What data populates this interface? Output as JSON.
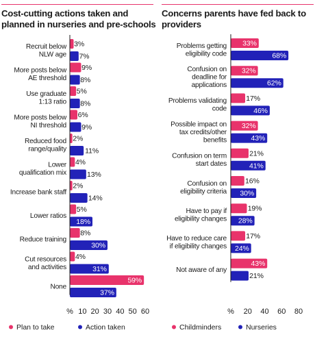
{
  "chart_data": [
    {
      "type": "bar",
      "orientation": "horizontal",
      "title": "Cost-cutting actions taken and planned in nurseries and pre-schools",
      "title_lines": [
        "Cost-cutting actions taken and",
        "planned in nurseries and pre-schools"
      ],
      "categories": [
        [
          "Recruit below",
          "NLW age"
        ],
        [
          "More posts below",
          "AE threshold"
        ],
        [
          "Use graduate",
          "1:13 ratio"
        ],
        [
          "More posts below",
          "NI threshold"
        ],
        [
          "Reduced food",
          "range/quality"
        ],
        [
          "Lower",
          "qualification mix"
        ],
        [
          "Increase bank staff"
        ],
        [
          "Lower ratios"
        ],
        [
          "Reduce training"
        ],
        [
          "Cut resources",
          "and activities"
        ],
        [
          "None"
        ]
      ],
      "series": [
        {
          "name": "Plan to take",
          "color": "#e8336b",
          "values": [
            3,
            9,
            5,
            6,
            2,
            4,
            2,
            5,
            8,
            4,
            59
          ]
        },
        {
          "name": "Action taken",
          "color": "#2222b8",
          "values": [
            7,
            8,
            8,
            9,
            11,
            13,
            14,
            18,
            30,
            31,
            37
          ]
        }
      ],
      "xlim": [
        0,
        60
      ],
      "xticks": [
        "%",
        "10",
        "20",
        "30",
        "40",
        "50",
        "60"
      ],
      "value_suffix": "%",
      "legend_placement": "bottom"
    },
    {
      "type": "bar",
      "orientation": "horizontal",
      "title": "Concerns parents have fed back to providers",
      "title_lines": [
        "Concerns parents have fed back to",
        "providers"
      ],
      "categories": [
        [
          "Problems getting",
          "eligibility code"
        ],
        [
          "Confusion on",
          "deadline for",
          "applications"
        ],
        [
          "Problems validating",
          "code"
        ],
        [
          "Possible impact on",
          "tax credits/other",
          "benefits"
        ],
        [
          "Confusion on term",
          "start dates"
        ],
        [
          "Confusion on",
          "eligibility criteria"
        ],
        [
          "Have to pay if",
          "eligibility changes"
        ],
        [
          "Have to reduce care",
          "if eligibility changes"
        ],
        [
          "Not aware of any"
        ]
      ],
      "series": [
        {
          "name": "Childminders",
          "color": "#e8336b",
          "values": [
            33,
            32,
            17,
            32,
            21,
            16,
            19,
            17,
            43
          ]
        },
        {
          "name": "Nurseries",
          "color": "#2222b8",
          "values": [
            68,
            62,
            46,
            43,
            41,
            30,
            28,
            24,
            21
          ]
        }
      ],
      "xlim": [
        0,
        80
      ],
      "xticks": [
        "%",
        "20",
        "40",
        "60",
        "80"
      ],
      "value_suffix": "%",
      "legend_placement": "bottom"
    }
  ]
}
